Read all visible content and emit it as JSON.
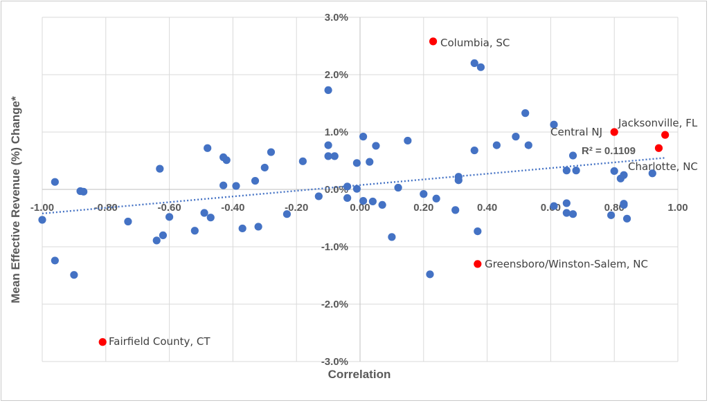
{
  "chart_data": {
    "type": "scatter",
    "xlabel": "Correlation",
    "ylabel": "Mean Effective Revenue (%) Change*",
    "xlim": [
      -1.0,
      1.0
    ],
    "ylim": [
      -3.0,
      3.0
    ],
    "x_ticks": [
      -1.0,
      -0.8,
      -0.6,
      -0.4,
      -0.2,
      0.0,
      0.2,
      0.4,
      0.6,
      0.8,
      1.0
    ],
    "y_ticks": [
      -3.0,
      -2.0,
      -1.0,
      0.0,
      1.0,
      2.0,
      3.0
    ],
    "x_tick_labels": [
      "-1.00",
      "-0.80",
      "-0.60",
      "-0.40",
      "-0.20",
      "0.00",
      "0.20",
      "0.40",
      "0.60",
      "0.80",
      "1.00"
    ],
    "y_tick_labels": [
      "-3.0%",
      "-2.0%",
      "-1.0%",
      "0.0%",
      "1.0%",
      "2.0%",
      "3.0%"
    ],
    "grid": true,
    "colors": {
      "points": "#4472c4",
      "highlight": "#ff0000",
      "trendline": "#4472c4",
      "grid": "#d9d9d9"
    },
    "series": [
      {
        "color": "#4472c4",
        "points": [
          [
            -1.0,
            -0.53
          ],
          [
            -0.96,
            0.13
          ],
          [
            -0.96,
            -1.24
          ],
          [
            -0.88,
            -0.03
          ],
          [
            -0.87,
            -0.04
          ],
          [
            -0.9,
            -1.49
          ],
          [
            -0.73,
            -0.56
          ],
          [
            -0.64,
            -0.89
          ],
          [
            -0.63,
            0.36
          ],
          [
            -0.62,
            -0.8
          ],
          [
            -0.6,
            -0.48
          ],
          [
            -0.52,
            -0.72
          ],
          [
            -0.49,
            -0.41
          ],
          [
            -0.48,
            0.72
          ],
          [
            -0.47,
            -0.49
          ],
          [
            -0.43,
            0.56
          ],
          [
            -0.42,
            0.51
          ],
          [
            -0.43,
            0.07
          ],
          [
            -0.39,
            0.06
          ],
          [
            -0.37,
            -0.68
          ],
          [
            -0.33,
            0.15
          ],
          [
            -0.32,
            -0.65
          ],
          [
            -0.3,
            0.38
          ],
          [
            -0.28,
            0.65
          ],
          [
            -0.23,
            -0.43
          ],
          [
            -0.18,
            0.49
          ],
          [
            -0.13,
            -0.12
          ],
          [
            -0.1,
            1.73
          ],
          [
            -0.1,
            0.77
          ],
          [
            -0.1,
            0.58
          ],
          [
            -0.08,
            0.58
          ],
          [
            -0.04,
            0.05
          ],
          [
            -0.04,
            -0.15
          ],
          [
            -0.01,
            0.46
          ],
          [
            -0.01,
            0.01
          ],
          [
            0.01,
            0.92
          ],
          [
            0.01,
            -0.2
          ],
          [
            0.03,
            0.48
          ],
          [
            0.04,
            -0.21
          ],
          [
            0.05,
            0.76
          ],
          [
            0.07,
            -0.27
          ],
          [
            0.1,
            -0.83
          ],
          [
            0.12,
            0.03
          ],
          [
            0.15,
            0.85
          ],
          [
            0.2,
            -0.08
          ],
          [
            0.22,
            -1.48
          ],
          [
            0.24,
            -0.16
          ],
          [
            0.3,
            -0.36
          ],
          [
            0.31,
            0.22
          ],
          [
            0.31,
            0.16
          ],
          [
            0.36,
            2.2
          ],
          [
            0.37,
            -0.73
          ],
          [
            0.38,
            2.13
          ],
          [
            0.36,
            0.68
          ],
          [
            0.43,
            0.77
          ],
          [
            0.49,
            0.92
          ],
          [
            0.52,
            1.33
          ],
          [
            0.53,
            0.77
          ],
          [
            0.61,
            1.13
          ],
          [
            0.61,
            -0.29
          ],
          [
            0.65,
            0.33
          ],
          [
            0.65,
            -0.24
          ],
          [
            0.65,
            -0.41
          ],
          [
            0.67,
            -0.43
          ],
          [
            0.67,
            0.59
          ],
          [
            0.68,
            0.33
          ],
          [
            0.79,
            -0.45
          ],
          [
            0.8,
            0.32
          ],
          [
            0.82,
            0.19
          ],
          [
            0.83,
            0.25
          ],
          [
            0.83,
            -0.25
          ],
          [
            0.83,
            -0.27
          ],
          [
            0.84,
            -0.51
          ],
          [
            0.92,
            0.28
          ]
        ]
      },
      {
        "color": "#ff0000",
        "points": [
          [
            0.23,
            2.58,
            "Columbia, SC"
          ],
          [
            0.8,
            1.0,
            "Central NJ"
          ],
          [
            0.96,
            0.95,
            "Jacksonville, FL"
          ],
          [
            0.94,
            0.72,
            ""
          ],
          [
            0.37,
            -1.3,
            "Greensboro/Winston-Salem, NC"
          ],
          [
            -0.81,
            -2.66,
            "Fairfield County, CT"
          ]
        ]
      }
    ],
    "labels": [
      "Columbia, SC",
      "Central NJ",
      "Jacksonville, FL",
      "Charlotte, NC",
      "Greensboro/Winston-Salem, NC",
      "Fairfield County, CT"
    ],
    "trendline": {
      "style": "dotted",
      "x": [
        -1.0,
        0.96
      ],
      "y": [
        -0.42,
        0.55
      ],
      "r_squared_label": "R² = 0.1109"
    }
  }
}
